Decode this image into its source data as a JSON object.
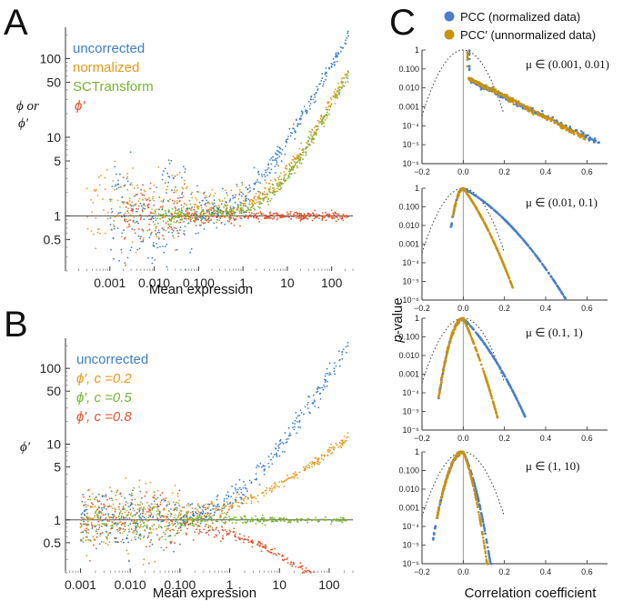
{
  "colors": {
    "blue": "#3f7fc3",
    "orange": "#e69a1c",
    "green": "#78b22e",
    "red": "#e0542b",
    "gold": "#c9920e",
    "cblue": "#4a7fc8",
    "axis": "#9a9a9a"
  },
  "chart_data": [
    {
      "panel": "A",
      "type": "scatter",
      "xscale": "log",
      "yscale": "log",
      "xlabel": "Mean expression",
      "ylabel": "ϕ or ϕ′",
      "ylabel_line1": "ϕ or",
      "ylabel_line2": "ϕ′",
      "xlim": [
        0.0001,
        300
      ],
      "ylim": [
        0.2,
        250
      ],
      "xticks": [
        "0.001",
        "0.010",
        "0.100",
        "1",
        "10",
        "100"
      ],
      "xtick_values": [
        0.001,
        0.01,
        0.1,
        1,
        10,
        100
      ],
      "yticks": [
        "0.5",
        "1",
        "5",
        "10",
        "50",
        "100"
      ],
      "ytick_values": [
        0.5,
        1,
        5,
        10,
        50,
        100
      ],
      "reference_line": 1,
      "series": [
        {
          "name": "uncorrected",
          "color": "blue",
          "model": {
            "a": 0.8,
            "b": 1.0,
            "scatter": 0.08,
            "start": 0.001
          }
        },
        {
          "name": "normalized",
          "color": "orange",
          "model": {
            "a": 1.3,
            "b": 0.48,
            "scatter": 0.35,
            "start": 0.0003
          }
        },
        {
          "name": "SCTransform",
          "color": "green",
          "model": {
            "a": 0.05,
            "b": 0.5,
            "scatter": 0.05,
            "start": 0.01
          }
        },
        {
          "name": "ϕ′",
          "color": "red",
          "model": {
            "a": 0.0,
            "b": 1.0,
            "scatter": 0.04,
            "start": 0.002
          }
        }
      ]
    },
    {
      "panel": "B",
      "type": "scatter",
      "xscale": "log",
      "yscale": "log",
      "xlabel": "Mean expression",
      "ylabel": "ϕ′",
      "xlim": [
        0.0005,
        300
      ],
      "ylim": [
        0.2,
        250
      ],
      "xticks": [
        "0.001",
        "0.010",
        "0.100",
        "1",
        "10",
        "100"
      ],
      "xtick_values": [
        0.001,
        0.01,
        0.1,
        1,
        10,
        100
      ],
      "yticks": [
        "0.5",
        "1",
        "5",
        "10",
        "50",
        "100"
      ],
      "ytick_values": [
        0.5,
        1,
        5,
        10,
        50,
        100
      ],
      "reference_line": 1,
      "series": [
        {
          "name": "uncorrected",
          "color": "blue",
          "model": {
            "a": 0.8,
            "b": 1.0,
            "start": 0.1
          }
        },
        {
          "name": "ϕ′, c =0.2",
          "color": "orange",
          "model": {
            "a": 0.55,
            "b": 0.55
          }
        },
        {
          "name": "ϕ′, c =0.5",
          "color": "green",
          "model": {
            "a": 0.0,
            "b": 1.0
          }
        },
        {
          "name": "ϕ′, c =0.8",
          "color": "red",
          "model": {
            "a": -0.45,
            "b": 0.55
          }
        }
      ]
    },
    {
      "panel": "C",
      "type": "scatter",
      "xlabel": "Correlation coefficient",
      "ylabel": "p-value",
      "ylabel_italic": "p",
      "ylabel_rest": "-value",
      "xlim": [
        -0.2,
        0.7
      ],
      "ylim_log10": [
        -6,
        0
      ],
      "xticks": [
        "−0.2",
        "0.0",
        "0.2",
        "0.4",
        "0.6"
      ],
      "xtick_values": [
        -0.2,
        0.0,
        0.2,
        0.4,
        0.6
      ],
      "yticks": [
        "1",
        "0.100",
        "0.010",
        "0.001",
        "10⁻⁴",
        "10⁻⁵",
        "10⁻⁶"
      ],
      "ytick_values": [
        0,
        -1,
        -2,
        -3,
        -4,
        -5,
        -6
      ],
      "legend": [
        {
          "name": "PCC (normalized data)",
          "color": "cblue"
        },
        {
          "name": "PCC′ (unnormalized data)",
          "color": "gold"
        }
      ],
      "reference_curve": "dotted null distribution, sd 0.05",
      "subpanels": [
        {
          "label": "μ ∈ (0.001, 0.01)",
          "blue": {
            "min": 0.0,
            "max": 0.66,
            "floor": -1.6,
            "slope": 2.9,
            "peak": 0.03
          },
          "orange": {
            "min": 0.0,
            "max": 0.6,
            "floor": -1.45,
            "slope": 3.1,
            "peak": 0.02
          }
        },
        {
          "label": "μ ∈ (0.01, 0.1)",
          "blue": {
            "min": -0.06,
            "max": 0.5,
            "floor": -0.9,
            "slope": 6.0,
            "peak": 0.0
          },
          "orange": {
            "min": -0.05,
            "max": 0.24,
            "floor": -0.9,
            "slope": 15.0,
            "peak": 0.0
          }
        },
        {
          "label": "μ ∈ (0.1, 1)",
          "blue": {
            "min": -0.12,
            "max": 0.3,
            "floor": -1.0,
            "slope": 11.0,
            "peak": 0.0
          },
          "orange": {
            "min": -0.12,
            "max": 0.17,
            "floor": -1.0,
            "slope": 24.0,
            "peak": 0.0
          }
        },
        {
          "label": "μ ∈ (1, 10)",
          "blue": {
            "min": -0.15,
            "max": 0.17,
            "floor": -1.0,
            "slope": 22.0,
            "peak": 0.0
          },
          "orange": {
            "min": -0.13,
            "max": 0.14,
            "floor": -1.0,
            "slope": 27.0,
            "peak": 0.0
          }
        }
      ]
    }
  ]
}
